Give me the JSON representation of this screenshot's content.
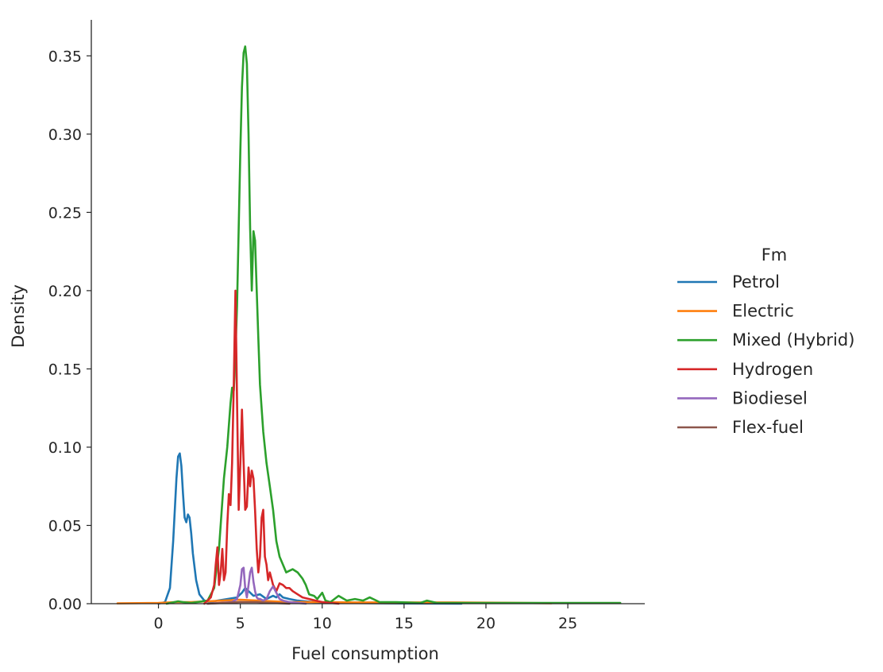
{
  "chart_data": {
    "type": "line",
    "subtype": "kde",
    "title": "",
    "xlabel": "Fuel consumption",
    "ylabel": "Density",
    "xlim": [
      -4.1,
      29.7
    ],
    "ylim": [
      0,
      0.373
    ],
    "xticks": [
      0,
      5,
      10,
      15,
      20,
      25
    ],
    "xtick_labels": [
      "0",
      "5",
      "10",
      "15",
      "20",
      "25"
    ],
    "yticks": [
      0,
      0.05,
      0.1,
      0.15,
      0.2,
      0.25,
      0.3,
      0.35
    ],
    "ytick_labels": [
      "0.00",
      "0.05",
      "0.10",
      "0.15",
      "0.20",
      "0.25",
      "0.30",
      "0.35"
    ],
    "grid": false,
    "legend": {
      "title": "Fm",
      "position": "right outside"
    },
    "series": [
      {
        "name": "Petrol",
        "color": "#1f77b4",
        "x": [
          0.0,
          0.4,
          0.7,
          0.9,
          1.1,
          1.2,
          1.3,
          1.4,
          1.5,
          1.6,
          1.7,
          1.8,
          1.9,
          2.0,
          2.1,
          2.3,
          2.5,
          2.8,
          3.2,
          3.6,
          4.2,
          4.8,
          5.1,
          5.3,
          5.5,
          5.8,
          6.2,
          6.6,
          7.0,
          7.2,
          7.4,
          7.6,
          8.0,
          8.5,
          9.5,
          11.0,
          14.0,
          18.5
        ],
        "y": [
          0.0,
          0.001,
          0.01,
          0.04,
          0.08,
          0.094,
          0.096,
          0.088,
          0.07,
          0.055,
          0.052,
          0.057,
          0.055,
          0.045,
          0.032,
          0.015,
          0.006,
          0.002,
          0.001,
          0.002,
          0.003,
          0.004,
          0.007,
          0.01,
          0.008,
          0.005,
          0.006,
          0.003,
          0.005,
          0.004,
          0.006,
          0.004,
          0.003,
          0.002,
          0.001,
          0.0005,
          0.0002,
          0.0
        ]
      },
      {
        "name": "Electric",
        "color": "#ff7f0e",
        "x": [
          -2.5,
          0.0,
          1.0,
          2.0,
          3.0,
          4.0,
          5.0,
          6.0,
          7.0,
          8.0,
          9.0,
          10.0,
          12.0,
          15.0,
          18.0,
          21.0,
          24.0
        ],
        "y": [
          0.0002,
          0.0005,
          0.001,
          0.001,
          0.0015,
          0.002,
          0.0025,
          0.002,
          0.0015,
          0.001,
          0.001,
          0.001,
          0.0008,
          0.0008,
          0.0008,
          0.0006,
          0.0003
        ]
      },
      {
        "name": "Mixed (Hybrid)",
        "color": "#2ca02c",
        "x": [
          0.5,
          1.2,
          1.5,
          2.0,
          3.0,
          3.4,
          3.7,
          4.0,
          4.2,
          4.4,
          4.5,
          4.6,
          4.7,
          4.8,
          4.9,
          5.0,
          5.1,
          5.2,
          5.3,
          5.4,
          5.5,
          5.6,
          5.7,
          5.8,
          5.9,
          6.0,
          6.1,
          6.2,
          6.4,
          6.6,
          6.8,
          7.0,
          7.2,
          7.4,
          7.6,
          7.8,
          8.0,
          8.2,
          8.5,
          8.8,
          9.0,
          9.2,
          9.5,
          9.7,
          10.0,
          10.2,
          10.5,
          11.0,
          11.5,
          12.0,
          12.5,
          12.9,
          13.5,
          14.5,
          16.0,
          16.4,
          17.0,
          20.0,
          24.0,
          28.2
        ],
        "y": [
          0.0,
          0.0015,
          0.001,
          0.0005,
          0.002,
          0.01,
          0.035,
          0.08,
          0.1,
          0.128,
          0.138,
          0.136,
          0.16,
          0.19,
          0.24,
          0.29,
          0.33,
          0.352,
          0.356,
          0.345,
          0.3,
          0.24,
          0.2,
          0.238,
          0.232,
          0.2,
          0.17,
          0.14,
          0.11,
          0.09,
          0.075,
          0.06,
          0.04,
          0.03,
          0.025,
          0.02,
          0.021,
          0.022,
          0.02,
          0.016,
          0.012,
          0.006,
          0.005,
          0.003,
          0.007,
          0.002,
          0.001,
          0.005,
          0.002,
          0.003,
          0.002,
          0.004,
          0.001,
          0.001,
          0.0005,
          0.002,
          0.0005,
          0.0005,
          0.0005,
          0.0005
        ]
      },
      {
        "name": "Hydrogen",
        "color": "#d62728",
        "x": [
          2.8,
          3.2,
          3.4,
          3.5,
          3.6,
          3.7,
          3.8,
          3.9,
          4.0,
          4.1,
          4.2,
          4.3,
          4.4,
          4.5,
          4.6,
          4.7,
          4.8,
          4.9,
          5.0,
          5.1,
          5.2,
          5.3,
          5.4,
          5.5,
          5.6,
          5.7,
          5.8,
          5.9,
          6.0,
          6.1,
          6.2,
          6.3,
          6.4,
          6.5,
          6.6,
          6.7,
          6.8,
          7.0,
          7.2,
          7.4,
          7.6,
          7.8,
          8.0,
          8.2,
          8.5,
          8.8,
          9.2,
          9.6,
          10.0,
          11.0
        ],
        "y": [
          0.0,
          0.004,
          0.012,
          0.025,
          0.036,
          0.012,
          0.02,
          0.035,
          0.015,
          0.02,
          0.05,
          0.07,
          0.063,
          0.09,
          0.14,
          0.2,
          0.13,
          0.06,
          0.09,
          0.124,
          0.09,
          0.06,
          0.062,
          0.087,
          0.075,
          0.085,
          0.08,
          0.06,
          0.035,
          0.02,
          0.03,
          0.055,
          0.06,
          0.03,
          0.025,
          0.015,
          0.02,
          0.012,
          0.008,
          0.013,
          0.012,
          0.01,
          0.01,
          0.008,
          0.006,
          0.004,
          0.003,
          0.002,
          0.001,
          0.0
        ]
      },
      {
        "name": "Biodiesel",
        "color": "#9467bd",
        "x": [
          3.0,
          4.5,
          4.8,
          5.0,
          5.1,
          5.2,
          5.3,
          5.4,
          5.5,
          5.6,
          5.7,
          5.8,
          5.9,
          6.0,
          6.1,
          6.2,
          6.4,
          6.6,
          6.8,
          7.0,
          7.2,
          7.4,
          7.6,
          8.0,
          9.0
        ],
        "y": [
          0.0,
          0.001,
          0.003,
          0.012,
          0.022,
          0.023,
          0.01,
          0.004,
          0.012,
          0.02,
          0.023,
          0.014,
          0.008,
          0.004,
          0.003,
          0.003,
          0.002,
          0.003,
          0.008,
          0.011,
          0.007,
          0.003,
          0.002,
          0.001,
          0.0
        ]
      },
      {
        "name": "Flex-fuel",
        "color": "#8c564b",
        "x": [
          3.0,
          4.0,
          5.0,
          6.0,
          7.0,
          8.0
        ],
        "y": [
          0.0,
          0.0005,
          0.001,
          0.001,
          0.0005,
          0.0
        ]
      }
    ]
  }
}
